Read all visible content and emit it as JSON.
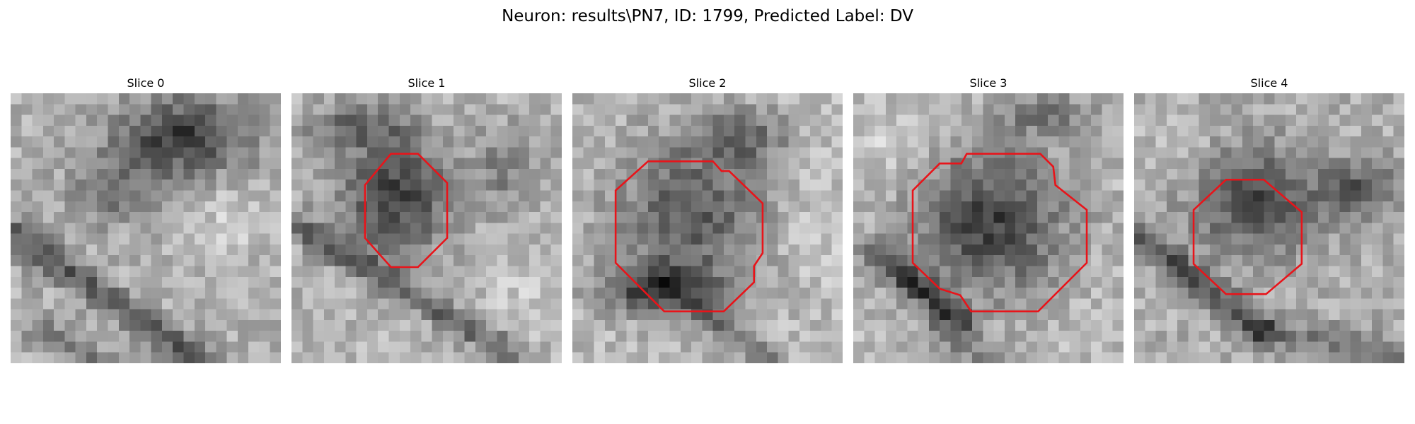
{
  "figure": {
    "title": "Neuron: results\\PN7, ID: 1799, Predicted Label: DV"
  },
  "slices": [
    {
      "title": "Slice 0",
      "has_contour": false
    },
    {
      "title": "Slice 1",
      "has_contour": true
    },
    {
      "title": "Slice 2",
      "has_contour": true
    },
    {
      "title": "Slice 3",
      "has_contour": true
    },
    {
      "title": "Slice 4",
      "has_contour": true
    }
  ],
  "colors": {
    "contour": "#e8141a",
    "background": "#ffffff"
  }
}
